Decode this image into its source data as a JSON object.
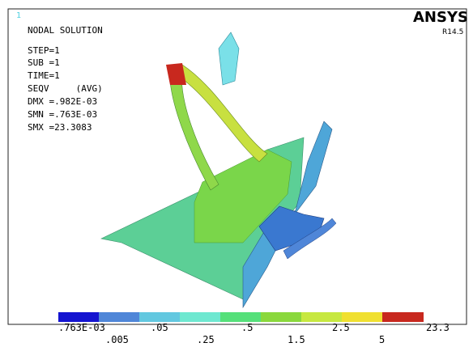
{
  "window": {
    "number": "1"
  },
  "info": {
    "lines": [
      "NODAL SOLUTION",
      "STEP=1",
      "SUB =1",
      "TIME=1",
      "SEQV     (AVG)",
      "DMX =.982E-03",
      "SMN =.763E-03",
      "SMX =23.3083"
    ]
  },
  "brand": {
    "name": "ANSYS",
    "version": "R14.5"
  },
  "legend": {
    "top_labels": [
      ".763E-03",
      ".05",
      ".5",
      "2.5",
      "23.3"
    ],
    "bottom_labels": [
      ".005",
      ".25",
      "1.5",
      "5"
    ]
  }
}
